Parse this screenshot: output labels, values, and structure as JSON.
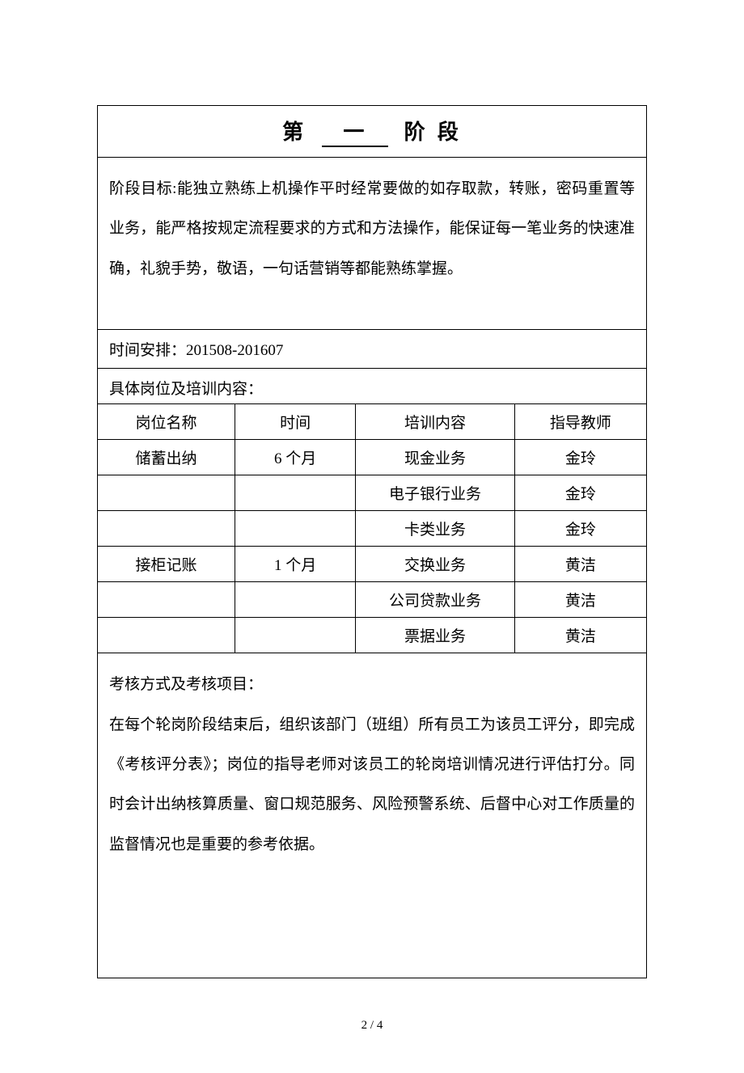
{
  "title": {
    "prefix": "第",
    "number": "一",
    "suffix": "阶 段"
  },
  "goal": {
    "label": "阶段目标:",
    "text": "能独立熟练上机操作平时经常要做的如存取款，转账，密码重置等业务，能严格按规定流程要求的方式和方法操作，能保证每一笔业务的快速准确，礼貌手势，敬语，一句话营销等都能熟练掌握。"
  },
  "schedule": {
    "label": "时间安排：",
    "value": "201508-201607"
  },
  "training": {
    "label": "具体岗位及培训内容：",
    "columns": [
      "岗位名称",
      "时间",
      "培训内容",
      "指导教师"
    ],
    "rows": [
      [
        "储蓄出纳",
        "6 个月",
        "现金业务",
        "金玲"
      ],
      [
        "",
        "",
        "电子银行业务",
        "金玲"
      ],
      [
        "",
        "",
        "卡类业务",
        "金玲"
      ],
      [
        "接柜记账",
        "1 个月",
        "交换业务",
        "黄洁"
      ],
      [
        "",
        "",
        "公司贷款业务",
        "黄洁"
      ],
      [
        "",
        "",
        "票据业务",
        "黄洁"
      ]
    ]
  },
  "assessment": {
    "label": "考核方式及考核项目：",
    "text": "在每个轮岗阶段结束后，组织该部门（班组）所有员工为该员工评分，即完成《考核评分表》；岗位的指导老师对该员工的轮岗培训情况进行评估打分。同时会计出纳核算质量、窗口规范服务、风险预警系统、后督中心对工作质量的监督情况也是重要的参考依据。"
  },
  "pageNumber": "2 / 4",
  "colors": {
    "text": "#000000",
    "background": "#ffffff",
    "border": "#000000"
  }
}
